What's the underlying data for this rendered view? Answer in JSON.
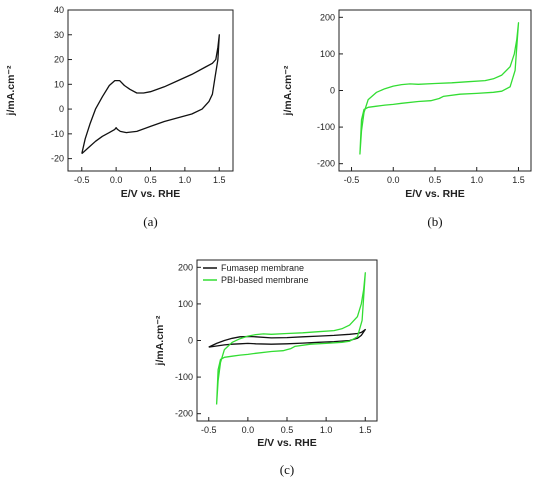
{
  "chart_data": [
    {
      "panel_label": "(a)",
      "type": "line",
      "xlabel": "E/V vs. RHE",
      "ylabel": "j/mA.cm⁻²",
      "xlim": [
        -0.7,
        1.7
      ],
      "ylim": [
        -25,
        40
      ],
      "xticks": [
        "-0.5",
        "0.0",
        "0.5",
        "1.0",
        "1.5"
      ],
      "xtick_values": [
        -0.5,
        0,
        0.5,
        1,
        1.5
      ],
      "yticks": [
        "-20",
        "-10",
        "0",
        "10",
        "20",
        "30",
        "40"
      ],
      "ytick_values": [
        -20,
        -10,
        0,
        10,
        20,
        30,
        40
      ],
      "grid": false,
      "series": [
        {
          "color": "#111111",
          "x": [
            -0.5,
            -0.45,
            -0.38,
            -0.3,
            -0.2,
            -0.1,
            -0.02,
            0.05,
            0.12,
            0.2,
            0.3,
            0.4,
            0.5,
            0.7,
            0.9,
            1.1,
            1.3,
            1.4,
            1.45,
            1.48,
            1.5,
            1.48,
            1.44,
            1.4,
            1.35,
            1.25,
            1.1,
            0.9,
            0.7,
            0.5,
            0.3,
            0.15,
            0.06,
            0.02,
            0.0,
            -0.02,
            -0.1,
            -0.2,
            -0.3,
            -0.4,
            -0.5
          ],
          "y": [
            -18,
            -12,
            -6,
            0,
            5,
            9.5,
            11.5,
            11.5,
            9.5,
            8,
            6.5,
            6.5,
            7,
            9,
            11.5,
            14,
            17,
            18.5,
            20,
            25,
            30,
            20,
            13,
            6,
            3,
            0,
            -2,
            -3.5,
            -5,
            -7,
            -9,
            -9.5,
            -9,
            -8.2,
            -7.5,
            -8.2,
            -9.5,
            -11,
            -13,
            -15.5,
            -18
          ]
        }
      ]
    },
    {
      "panel_label": "(b)",
      "type": "line",
      "xlabel": "E/V vs. RHE",
      "ylabel": "j/mA.cm⁻²",
      "xlim": [
        -0.65,
        1.65
      ],
      "ylim": [
        -220,
        220
      ],
      "xticks": [
        "-0.5",
        "0.0",
        "0.5",
        "1.0",
        "1.5"
      ],
      "xtick_values": [
        -0.5,
        0,
        0.5,
        1,
        1.5
      ],
      "yticks": [
        "-200",
        "-100",
        "0",
        "100",
        "200"
      ],
      "ytick_values": [
        -200,
        -100,
        0,
        100,
        200
      ],
      "grid": false,
      "series": [
        {
          "color": "#33dd33",
          "x": [
            -0.4,
            -0.38,
            -0.35,
            -0.3,
            -0.2,
            -0.1,
            0.0,
            0.1,
            0.2,
            0.3,
            0.5,
            0.7,
            0.9,
            1.1,
            1.2,
            1.3,
            1.4,
            1.45,
            1.48,
            1.5,
            1.46,
            1.4,
            1.3,
            1.2,
            1.0,
            0.8,
            0.6,
            0.55,
            0.5,
            0.45,
            0.3,
            0.1,
            0.0,
            -0.1,
            -0.2,
            -0.3,
            -0.35,
            -0.38,
            -0.4
          ],
          "y": [
            -175,
            -110,
            -60,
            -25,
            -5,
            5,
            12,
            16,
            18,
            17,
            19,
            21,
            24,
            27,
            32,
            42,
            65,
            100,
            140,
            185,
            55,
            10,
            -2,
            -5,
            -8,
            -10,
            -16,
            -22,
            -25,
            -28,
            -30,
            -35,
            -38,
            -40,
            -43,
            -46,
            -52,
            -80,
            -175
          ]
        }
      ]
    },
    {
      "panel_label": "(c)",
      "type": "line",
      "xlabel": "E/V vs. RHE",
      "ylabel": "j/mA.cm⁻²",
      "xlim": [
        -0.65,
        1.65
      ],
      "ylim": [
        -220,
        220
      ],
      "xticks": [
        "-0.5",
        "0.0",
        "0.5",
        "1.0",
        "1.5"
      ],
      "xtick_values": [
        -0.5,
        0,
        0.5,
        1,
        1.5
      ],
      "yticks": [
        "-200",
        "-100",
        "0",
        "100",
        "200"
      ],
      "ytick_values": [
        -200,
        -100,
        0,
        100,
        200
      ],
      "grid": false,
      "legend_position": "top-left",
      "series": [
        {
          "name": "Fumasep membrane",
          "color": "#111111",
          "x": [
            -0.5,
            -0.4,
            -0.3,
            -0.2,
            -0.1,
            0.0,
            0.1,
            0.3,
            0.5,
            0.7,
            0.9,
            1.1,
            1.3,
            1.4,
            1.45,
            1.5,
            1.45,
            1.4,
            1.3,
            1.1,
            0.9,
            0.7,
            0.5,
            0.3,
            0.1,
            0.0,
            -0.1,
            -0.2,
            -0.3,
            -0.4,
            -0.5
          ],
          "y": [
            -18,
            -8,
            0,
            6,
            10,
            11,
            10,
            7,
            8,
            10,
            12,
            14,
            17,
            19,
            22,
            30,
            14,
            6,
            0,
            -3,
            -5,
            -7,
            -9,
            -10,
            -9,
            -8,
            -9,
            -10,
            -12,
            -15,
            -18
          ]
        },
        {
          "name": "PBI-based membrane",
          "color": "#33dd33",
          "x": [
            -0.4,
            -0.38,
            -0.35,
            -0.3,
            -0.2,
            -0.1,
            0.0,
            0.1,
            0.2,
            0.3,
            0.5,
            0.7,
            0.9,
            1.1,
            1.2,
            1.3,
            1.4,
            1.45,
            1.48,
            1.5,
            1.46,
            1.4,
            1.3,
            1.2,
            1.0,
            0.8,
            0.6,
            0.55,
            0.5,
            0.45,
            0.3,
            0.1,
            0.0,
            -0.1,
            -0.2,
            -0.3,
            -0.35,
            -0.38,
            -0.4
          ],
          "y": [
            -175,
            -110,
            -60,
            -25,
            -5,
            5,
            12,
            16,
            18,
            17,
            19,
            21,
            24,
            27,
            32,
            42,
            65,
            100,
            140,
            185,
            55,
            10,
            -2,
            -5,
            -8,
            -10,
            -16,
            -22,
            -25,
            -28,
            -30,
            -35,
            -38,
            -40,
            -43,
            -46,
            -52,
            -80,
            -175
          ]
        }
      ]
    }
  ]
}
